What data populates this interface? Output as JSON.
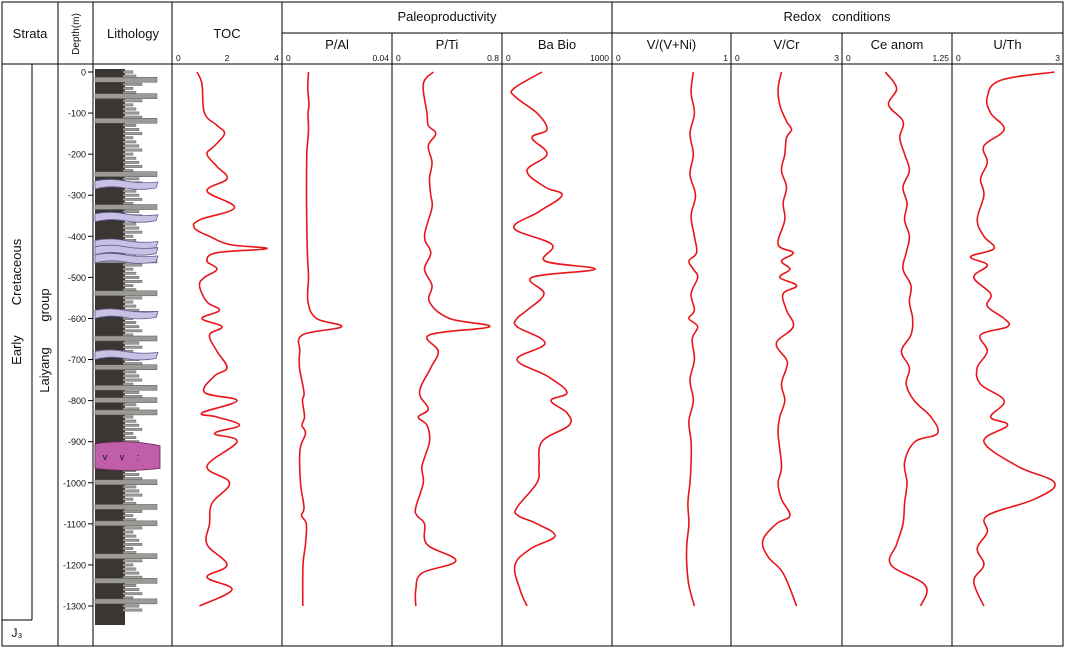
{
  "header": {
    "strata": "Strata",
    "depth": "Depth(m)",
    "lithology": "Lithology",
    "group_paleo": "Paleoproductivity",
    "group_redox": "Redox   conditions"
  },
  "strata_labels": {
    "early": "Early",
    "cretaceous": "Cretaceous",
    "laiyang": "Laiyang",
    "group": "group",
    "j3": "J₃"
  },
  "chart_data": {
    "type": "line",
    "y_axis": {
      "label": "Depth(m)",
      "range": [
        0,
        -1300
      ],
      "ticks": [
        0,
        -100,
        -200,
        -300,
        -400,
        -500,
        -600,
        -700,
        -800,
        -900,
        -1000,
        -1100,
        -1200,
        -1300
      ],
      "tick_labels": [
        "0",
        "-100",
        "-200",
        "-300",
        "-400",
        "-500",
        "-600",
        "-700",
        "-800",
        "-900",
        "-1000",
        "-1100",
        "-1200",
        "-1300"
      ]
    },
    "line_color": "#e8161b",
    "panels": [
      {
        "id": "toc",
        "title": "TOC",
        "xlim": [
          0,
          4
        ],
        "xtick_labels": [
          "0",
          "2",
          "4"
        ],
        "xtick_values": [
          0,
          2,
          4
        ],
        "depth": [
          0,
          -30,
          -100,
          -130,
          -150,
          -180,
          -200,
          -230,
          -260,
          -290,
          -330,
          -360,
          -380,
          -400,
          -420,
          -430,
          -440,
          -460,
          -480,
          -500,
          -520,
          -560,
          -580,
          -600,
          -620,
          -640,
          -680,
          -720,
          -740,
          -780,
          -800,
          -830,
          -840,
          -860,
          -880,
          -900,
          -960,
          -1000,
          -1050,
          -1100,
          -1150,
          -1200,
          -1230,
          -1260,
          -1300
        ],
        "values": [
          0.8,
          1.0,
          1.1,
          1.6,
          1.9,
          1.5,
          1.2,
          1.6,
          2.0,
          1.2,
          2.3,
          0.9,
          0.7,
          1.3,
          2.1,
          3.6,
          1.6,
          1.2,
          1.6,
          1.1,
          0.9,
          1.2,
          1.7,
          1.0,
          1.8,
          1.3,
          1.6,
          2.0,
          1.5,
          1.1,
          2.4,
          1.0,
          1.6,
          2.5,
          1.5,
          2.4,
          1.2,
          2.1,
          1.4,
          1.3,
          1.2,
          2.0,
          1.2,
          2.2,
          0.9
        ]
      },
      {
        "id": "p_al",
        "title": "P/Al",
        "xlim": [
          0,
          0.04
        ],
        "xtick_labels": [
          "0",
          "0.04"
        ],
        "xtick_values": [
          0,
          0.04
        ],
        "depth": [
          0,
          -40,
          -80,
          -100,
          -140,
          -180,
          -200,
          -300,
          -400,
          -450,
          -500,
          -560,
          -600,
          -620,
          -640,
          -680,
          -720,
          -780,
          -800,
          -840,
          -860,
          -880,
          -920,
          -1000,
          -1060,
          -1080,
          -1100,
          -1150,
          -1200,
          -1300
        ],
        "values": [
          0.0086,
          0.0083,
          0.0088,
          0.0084,
          0.0086,
          0.0081,
          0.0079,
          0.0078,
          0.008,
          0.0082,
          0.0086,
          0.0084,
          0.0118,
          0.0218,
          0.0062,
          0.0051,
          0.005,
          0.0068,
          0.0062,
          0.007,
          0.006,
          0.0074,
          0.0052,
          0.0054,
          0.0068,
          0.0058,
          0.0077,
          0.0074,
          0.0064,
          0.0063
        ]
      },
      {
        "id": "p_ti",
        "title": "P/Ti",
        "xlim": [
          0,
          0.8
        ],
        "xtick_labels": [
          "0",
          "0.8"
        ],
        "xtick_values": [
          0,
          0.8
        ],
        "depth": [
          0,
          -30,
          -100,
          -130,
          -150,
          -180,
          -220,
          -260,
          -300,
          -330,
          -400,
          -440,
          -480,
          -520,
          -560,
          -600,
          -620,
          -640,
          -680,
          -720,
          -780,
          -820,
          -840,
          -860,
          -900,
          -960,
          -1000,
          -1060,
          -1080,
          -1100,
          -1150,
          -1190,
          -1220,
          -1260,
          -1300
        ],
        "values": [
          0.29,
          0.21,
          0.24,
          0.25,
          0.31,
          0.25,
          0.28,
          0.26,
          0.27,
          0.28,
          0.22,
          0.27,
          0.22,
          0.28,
          0.26,
          0.42,
          0.74,
          0.26,
          0.33,
          0.27,
          0.18,
          0.25,
          0.17,
          0.24,
          0.26,
          0.2,
          0.21,
          0.15,
          0.16,
          0.22,
          0.24,
          0.47,
          0.2,
          0.15,
          0.15
        ]
      },
      {
        "id": "ba_bio",
        "title": "Ba Bio",
        "xlim": [
          0,
          1000
        ],
        "xtick_labels": [
          "0",
          "1000"
        ],
        "xtick_values": [
          0,
          1000
        ],
        "depth": [
          0,
          -40,
          -60,
          -100,
          -140,
          -160,
          -200,
          -240,
          -280,
          -300,
          -340,
          -380,
          -420,
          -460,
          -480,
          -500,
          -540,
          -580,
          -600,
          -620,
          -660,
          -700,
          -740,
          -780,
          -800,
          -830,
          -860,
          -900,
          -960,
          -1000,
          -1060,
          -1080,
          -1100,
          -1130,
          -1160,
          -1200,
          -1260,
          -1300
        ],
        "values": [
          350,
          70,
          80,
          300,
          400,
          250,
          400,
          200,
          380,
          550,
          320,
          70,
          450,
          380,
          880,
          250,
          370,
          200,
          100,
          100,
          380,
          100,
          400,
          600,
          440,
          600,
          620,
          350,
          320,
          300,
          100,
          110,
          300,
          480,
          240,
          80,
          130,
          200
        ]
      },
      {
        "id": "v_vni",
        "title": "V/(V+Ni)",
        "xlim": [
          0,
          1
        ],
        "xtick_labels": [
          "0",
          "1"
        ],
        "xtick_values": [
          0,
          1
        ],
        "depth": [
          0,
          -50,
          -100,
          -150,
          -200,
          -250,
          -300,
          -350,
          -400,
          -440,
          -460,
          -480,
          -500,
          -540,
          -580,
          -600,
          -620,
          -650,
          -700,
          -750,
          -800,
          -850,
          -900,
          -950,
          -1000,
          -1050,
          -1100,
          -1150,
          -1200,
          -1250,
          -1300
        ],
        "values": [
          0.7,
          0.68,
          0.71,
          0.67,
          0.7,
          0.67,
          0.72,
          0.68,
          0.71,
          0.73,
          0.66,
          0.7,
          0.74,
          0.68,
          0.71,
          0.66,
          0.74,
          0.69,
          0.71,
          0.67,
          0.7,
          0.66,
          0.68,
          0.68,
          0.67,
          0.65,
          0.66,
          0.64,
          0.64,
          0.66,
          0.71
        ]
      },
      {
        "id": "v_cr",
        "title": "V/Cr",
        "xlim": [
          0,
          3
        ],
        "xtick_labels": [
          "0",
          "3"
        ],
        "xtick_values": [
          0,
          3
        ],
        "depth": [
          0,
          -40,
          -80,
          -120,
          -140,
          -160,
          -200,
          -240,
          -280,
          -320,
          -360,
          -420,
          -440,
          -460,
          -480,
          -500,
          -520,
          -540,
          -580,
          -620,
          -660,
          -700,
          -720,
          -760,
          -800,
          -840,
          -880,
          -960,
          -1000,
          -1040,
          -1080,
          -1100,
          -1140,
          -1180,
          -1220,
          -1300
        ],
        "values": [
          1.35,
          1.25,
          1.3,
          1.5,
          1.65,
          1.5,
          1.45,
          1.35,
          1.5,
          1.4,
          1.45,
          1.25,
          1.7,
          1.35,
          1.6,
          1.3,
          1.8,
          1.4,
          1.5,
          1.7,
          1.2,
          1.5,
          1.5,
          1.35,
          1.45,
          1.3,
          1.25,
          1.35,
          1.25,
          1.35,
          1.6,
          1.2,
          0.8,
          0.95,
          1.4,
          1.8
        ]
      },
      {
        "id": "ce_anom",
        "title": "Ce anom",
        "xlim": [
          0,
          1.25
        ],
        "xtick_labels": [
          "0",
          "1.25"
        ],
        "xtick_values": [
          0,
          1.25
        ],
        "depth": [
          0,
          -40,
          -80,
          -120,
          -160,
          -200,
          -240,
          -280,
          -320,
          -360,
          -400,
          -440,
          -480,
          -520,
          -560,
          -600,
          -640,
          -680,
          -720,
          -760,
          -800,
          -840,
          -880,
          -900,
          -950,
          -1000,
          -1050,
          -1100,
          -1150,
          -1200,
          -1250,
          -1300
        ],
        "values": [
          0.48,
          0.62,
          0.52,
          0.7,
          0.66,
          0.72,
          0.78,
          0.7,
          0.75,
          0.72,
          0.78,
          0.74,
          0.7,
          0.8,
          0.78,
          0.82,
          0.8,
          0.68,
          0.78,
          0.74,
          0.84,
          1.05,
          1.13,
          0.85,
          0.72,
          0.75,
          0.72,
          0.7,
          0.62,
          0.55,
          0.98,
          0.92
        ]
      },
      {
        "id": "u_th",
        "title": "U/Th",
        "xlim": [
          0,
          3
        ],
        "xtick_labels": [
          "0",
          "3"
        ],
        "xtick_values": [
          0,
          3
        ],
        "depth": [
          0,
          -20,
          -60,
          -100,
          -140,
          -180,
          -220,
          -260,
          -300,
          -360,
          -400,
          -430,
          -450,
          -470,
          -500,
          -540,
          -570,
          -600,
          -620,
          -640,
          -680,
          -720,
          -760,
          -800,
          -840,
          -860,
          -900,
          -960,
          -1000,
          -1040,
          -1080,
          -1120,
          -1160,
          -1200,
          -1240,
          -1300
        ],
        "values": [
          2.9,
          1.3,
          0.9,
          1.0,
          1.4,
          0.8,
          0.9,
          0.7,
          0.8,
          0.6,
          0.8,
          1.1,
          0.4,
          0.9,
          0.5,
          1.0,
          0.9,
          1.4,
          1.5,
          0.7,
          0.9,
          0.6,
          0.7,
          1.4,
          1.0,
          1.5,
          0.8,
          1.8,
          2.9,
          2.3,
          0.9,
          0.9,
          0.6,
          0.8,
          0.5,
          0.8
        ]
      }
    ],
    "lithology_colors": {
      "mudstone": "#3b3633",
      "siltstone": "#9c9a97",
      "tuff": "#c7c1e4",
      "tuff_edge": "#6a5f99",
      "basalt": "#c05ea9"
    }
  }
}
